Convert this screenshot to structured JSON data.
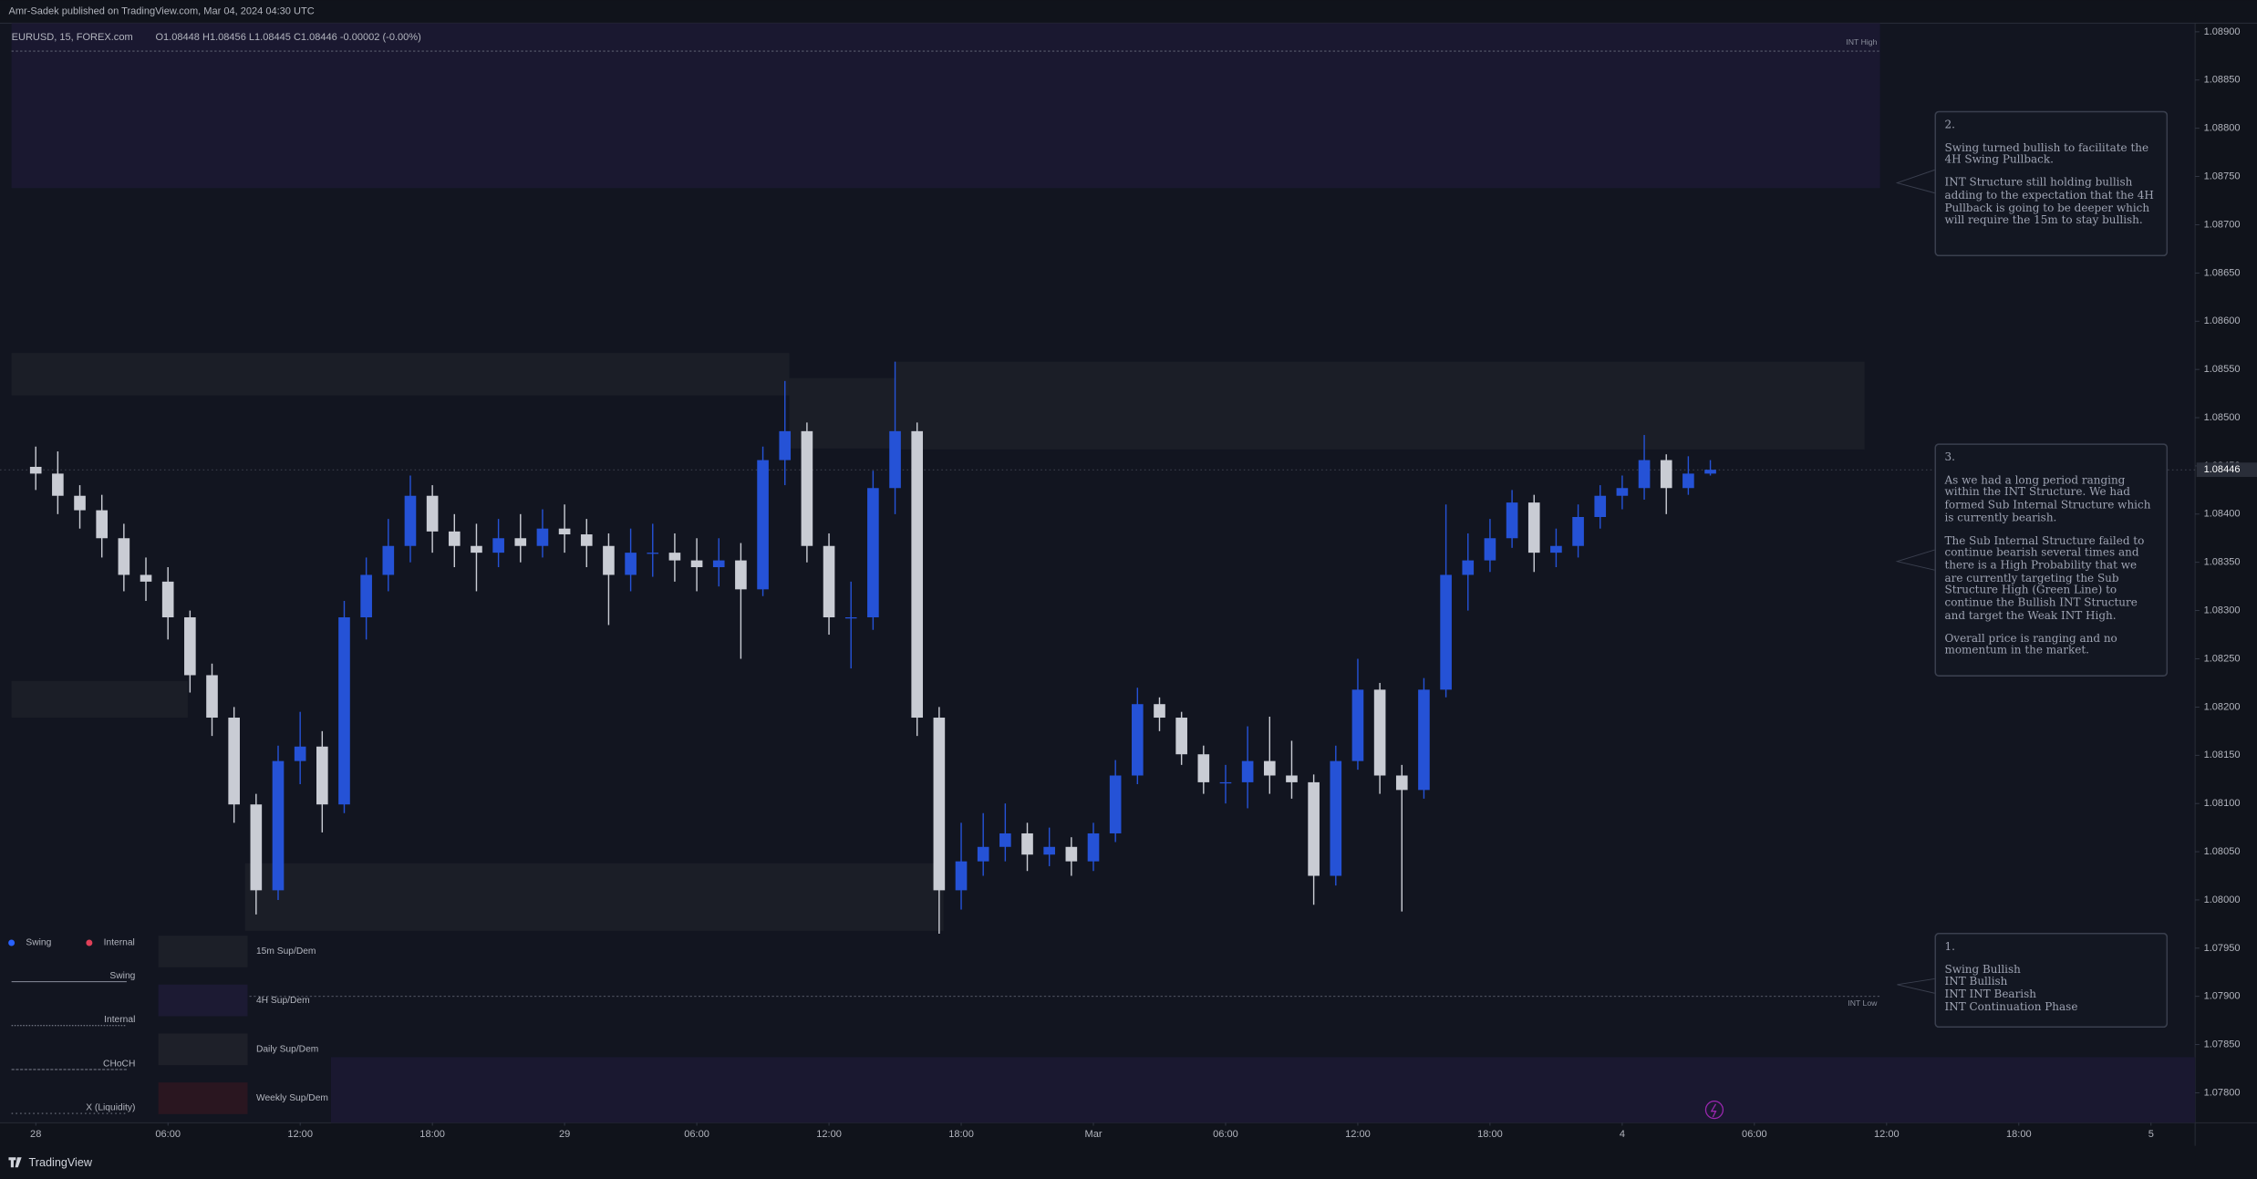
{
  "header": {
    "published": "Amr-Sadek published on TradingView.com, Mar 04, 2024 04:30 UTC",
    "brand": "TradingView"
  },
  "chart_data": {
    "type": "candlestick",
    "symbol": "EURUSD, 15, FOREX.com",
    "ohlc_legend": "O1.08448 H1.08456 L1.08445 C1.08446 -0.00002 (-0.00%)",
    "up_color": "#2552d6",
    "down_color": "#c9ccd4",
    "grid": false,
    "xlim": [
      -1.1,
      98
    ],
    "xticks": [
      {
        "value": 0,
        "label": "28"
      },
      {
        "value": 6,
        "label": "06:00"
      },
      {
        "value": 12,
        "label": "12:00"
      },
      {
        "value": 18,
        "label": "18:00"
      },
      {
        "value": 24,
        "label": "29"
      },
      {
        "value": 30,
        "label": "06:00"
      },
      {
        "value": 36,
        "label": "12:00"
      },
      {
        "value": 42,
        "label": "18:00"
      },
      {
        "value": 48,
        "label": "Mar"
      },
      {
        "value": 54,
        "label": "06:00"
      },
      {
        "value": 60,
        "label": "12:00"
      },
      {
        "value": 66,
        "label": "18:00"
      },
      {
        "value": 72,
        "label": "4"
      },
      {
        "value": 78,
        "label": "06:00"
      },
      {
        "value": 84,
        "label": "12:00"
      },
      {
        "value": 90,
        "label": "18:00"
      },
      {
        "value": 96,
        "label": "5"
      }
    ],
    "ylim": [
      1.07769,
      1.08909
    ],
    "yticks": [
      {
        "value": 1.078,
        "label": "1.07800"
      },
      {
        "value": 1.0785,
        "label": "1.07850"
      },
      {
        "value": 1.079,
        "label": "1.07900"
      },
      {
        "value": 1.0795,
        "label": "1.07950"
      },
      {
        "value": 1.08,
        "label": "1.08000"
      },
      {
        "value": 1.0805,
        "label": "1.08050"
      },
      {
        "value": 1.081,
        "label": "1.08100"
      },
      {
        "value": 1.0815,
        "label": "1.08150"
      },
      {
        "value": 1.082,
        "label": "1.08200"
      },
      {
        "value": 1.0825,
        "label": "1.08250"
      },
      {
        "value": 1.083,
        "label": "1.08300"
      },
      {
        "value": 1.0835,
        "label": "1.08350"
      },
      {
        "value": 1.084,
        "label": "1.08400"
      },
      {
        "value": 1.0845,
        "label": "1.08450"
      },
      {
        "value": 1.085,
        "label": "1.08500"
      },
      {
        "value": 1.0855,
        "label": "1.08550"
      },
      {
        "value": 1.086,
        "label": "1.08600"
      },
      {
        "value": 1.0865,
        "label": "1.08650"
      },
      {
        "value": 1.087,
        "label": "1.08700"
      },
      {
        "value": 1.0875,
        "label": "1.08750"
      },
      {
        "value": 1.088,
        "label": "1.08800"
      },
      {
        "value": 1.0885,
        "label": "1.08850"
      },
      {
        "value": 1.089,
        "label": "1.08900"
      }
    ],
    "last_price": 1.08446,
    "x": [
      0,
      1,
      2,
      3,
      4,
      5,
      6,
      7,
      8,
      9,
      10,
      11,
      12,
      13,
      14,
      15,
      16,
      17,
      18,
      19,
      20,
      21,
      22,
      23,
      24,
      25,
      26,
      27,
      28,
      29,
      30,
      31,
      32,
      33,
      34,
      35,
      36,
      37,
      38,
      39,
      40,
      41,
      42,
      43,
      44,
      45,
      46,
      47,
      48,
      49,
      50,
      51,
      52,
      53,
      54,
      55,
      56,
      57,
      58,
      59,
      60,
      61,
      62,
      63,
      64,
      65,
      66,
      67,
      68,
      69,
      70,
      71,
      72,
      73,
      74,
      75,
      76
    ],
    "open": [
      1.08449,
      1.08442,
      1.08419,
      1.08404,
      1.08375,
      1.08337,
      1.0833,
      1.08293,
      1.08233,
      1.08189,
      1.08099,
      1.0801,
      1.08144,
      1.08159,
      1.08099,
      1.08293,
      1.08337,
      1.08367,
      1.08419,
      1.08382,
      1.08367,
      1.0836,
      1.08375,
      1.08367,
      1.08385,
      1.08379,
      1.08367,
      1.08337,
      1.0836,
      1.0836,
      1.08352,
      1.08345,
      1.08352,
      1.08322,
      1.08456,
      1.08486,
      1.08367,
      1.08293,
      1.08293,
      1.08427,
      1.08486,
      1.08189,
      1.0801,
      1.0804,
      1.08055,
      1.08069,
      1.08047,
      1.08055,
      1.0804,
      1.08069,
      1.08129,
      1.08203,
      1.08189,
      1.08151,
      1.08122,
      1.08122,
      1.08144,
      1.08129,
      1.08122,
      1.08025,
      1.08144,
      1.08218,
      1.08129,
      1.08114,
      1.08218,
      1.08337,
      1.08352,
      1.08375,
      1.08412,
      1.0836,
      1.08367,
      1.08397,
      1.08419,
      1.08427,
      1.08456,
      1.08427,
      1.08442
    ],
    "high": [
      1.0847,
      1.08465,
      1.0843,
      1.0842,
      1.0839,
      1.08355,
      1.08345,
      1.083,
      1.08245,
      1.082,
      1.0811,
      1.0816,
      1.08195,
      1.08175,
      1.0831,
      1.08355,
      1.08395,
      1.0844,
      1.0843,
      1.084,
      1.0839,
      1.08395,
      1.084,
      1.08405,
      1.0841,
      1.08395,
      1.0838,
      1.08385,
      1.0839,
      1.0838,
      1.08375,
      1.08375,
      1.0837,
      1.0847,
      1.08538,
      1.08495,
      1.0838,
      1.0833,
      1.08445,
      1.08558,
      1.08495,
      1.082,
      1.0808,
      1.0809,
      1.081,
      1.0808,
      1.08075,
      1.08065,
      1.0808,
      1.08145,
      1.0822,
      1.0821,
      1.08195,
      1.0816,
      1.0814,
      1.0818,
      1.0819,
      1.08165,
      1.0813,
      1.0816,
      1.0825,
      1.08225,
      1.0814,
      1.0823,
      1.0841,
      1.0838,
      1.08395,
      1.08425,
      1.0842,
      1.08385,
      1.0841,
      1.0843,
      1.0844,
      1.08482,
      1.08462,
      1.0846,
      1.08456
    ],
    "low": [
      1.08425,
      1.084,
      1.08385,
      1.08355,
      1.0832,
      1.0831,
      1.0827,
      1.08215,
      1.0817,
      1.0808,
      1.07985,
      1.08,
      1.0812,
      1.0807,
      1.0809,
      1.0827,
      1.0832,
      1.0835,
      1.0836,
      1.08345,
      1.0832,
      1.08345,
      1.0835,
      1.08355,
      1.0836,
      1.08345,
      1.08285,
      1.0832,
      1.08335,
      1.0833,
      1.0832,
      1.08325,
      1.0825,
      1.08315,
      1.0843,
      1.0835,
      1.08275,
      1.0824,
      1.0828,
      1.084,
      1.0817,
      1.07965,
      1.0799,
      1.08025,
      1.0804,
      1.0803,
      1.08035,
      1.08025,
      1.0803,
      1.0806,
      1.0812,
      1.08175,
      1.0814,
      1.0811,
      1.081,
      1.08095,
      1.0811,
      1.08105,
      1.07995,
      1.08015,
      1.08135,
      1.0811,
      1.07988,
      1.08105,
      1.0821,
      1.083,
      1.0834,
      1.08365,
      1.0834,
      1.08345,
      1.08355,
      1.08385,
      1.08405,
      1.08415,
      1.084,
      1.0842,
      1.0844
    ],
    "close": [
      1.08442,
      1.08419,
      1.08404,
      1.08375,
      1.08337,
      1.0833,
      1.08293,
      1.08233,
      1.08189,
      1.08099,
      1.0801,
      1.08144,
      1.08159,
      1.08099,
      1.08293,
      1.08337,
      1.08367,
      1.08419,
      1.08382,
      1.08367,
      1.0836,
      1.08375,
      1.08367,
      1.08385,
      1.08379,
      1.08367,
      1.08337,
      1.0836,
      1.0836,
      1.08352,
      1.08345,
      1.08352,
      1.08322,
      1.08456,
      1.08486,
      1.08367,
      1.08293,
      1.08293,
      1.08427,
      1.08486,
      1.08189,
      1.0801,
      1.0804,
      1.08055,
      1.08069,
      1.08047,
      1.08055,
      1.0804,
      1.08069,
      1.08129,
      1.08203,
      1.08189,
      1.08151,
      1.08122,
      1.08122,
      1.08144,
      1.08129,
      1.08122,
      1.08025,
      1.08144,
      1.08218,
      1.08129,
      1.08114,
      1.08218,
      1.08337,
      1.08352,
      1.08375,
      1.08412,
      1.0836,
      1.08367,
      1.08397,
      1.08419,
      1.08427,
      1.08456,
      1.08427,
      1.08442,
      1.08446
    ],
    "zones": [
      {
        "from": -1.1,
        "to": 83.7,
        "low": 1.08738,
        "high": 1.08909,
        "color": "#1a1830"
      },
      {
        "from": -1.1,
        "to": 34.2,
        "low": 1.08523,
        "high": 1.08567,
        "color": "#1b1e27"
      },
      {
        "from": 34.2,
        "to": 39.0,
        "low": 1.08468,
        "high": 1.08541,
        "color": "#1b1e27"
      },
      {
        "from": 39.0,
        "to": 83.0,
        "low": 1.08467,
        "high": 1.08558,
        "color": "#1b1e27"
      },
      {
        "from": -1.1,
        "to": 6.9,
        "low": 1.08189,
        "high": 1.08227,
        "color": "#1b1e27"
      },
      {
        "from": 9.5,
        "to": 41.2,
        "low": 1.07968,
        "high": 1.08038,
        "color": "#1b1e27"
      },
      {
        "from": 13.4,
        "to": 98,
        "low": 1.07769,
        "high": 1.07837,
        "color": "#1a1830"
      }
    ],
    "levels": [
      {
        "label": "INT High",
        "value": 1.0888,
        "from": -1.1,
        "to": 83.7
      },
      {
        "label": "INT Low",
        "value": 1.079,
        "from": 9.5,
        "to": 83.7
      }
    ],
    "indicator_legend": {
      "series": [
        {
          "name": "Swing",
          "color": "#2962ff"
        },
        {
          "name": "Internal",
          "color": "#e04058"
        }
      ],
      "lines": [
        "Swing",
        "Internal",
        "CHoCH",
        "X (Liquidity)"
      ],
      "zones": [
        "15m Sup/Dem",
        "4H Sup/Dem",
        "Daily Sup/Dem",
        "Weekly Sup/Dem"
      ]
    },
    "annotations": [
      {
        "lines": [
          "2.",
          "Swing turned bullish to facilitate the 4H Swing Pullback.",
          "INT Structure still holding bullish adding to the expectation that the 4H Pullback is going to be deeper which will require the 15m to stay bullish."
        ]
      },
      {
        "lines": [
          "3.",
          "As we had a long period ranging within the INT Structure. We had formed Sub Internal Structure which is currently bearish.",
          "The Sub Internal Structure failed to continue bearish several times and there is a High Probability that we are currently targeting the Sub Structure High (Green Line) to continue the Bullish INT Structure and target the Weak INT High.",
          "Overall price is ranging and no momentum in the market."
        ]
      },
      {
        "lines": [
          "1.",
          "Swing Bullish",
          "INT Bullish",
          "INT INT Bearish",
          "INT Continuation Phase"
        ]
      }
    ]
  }
}
